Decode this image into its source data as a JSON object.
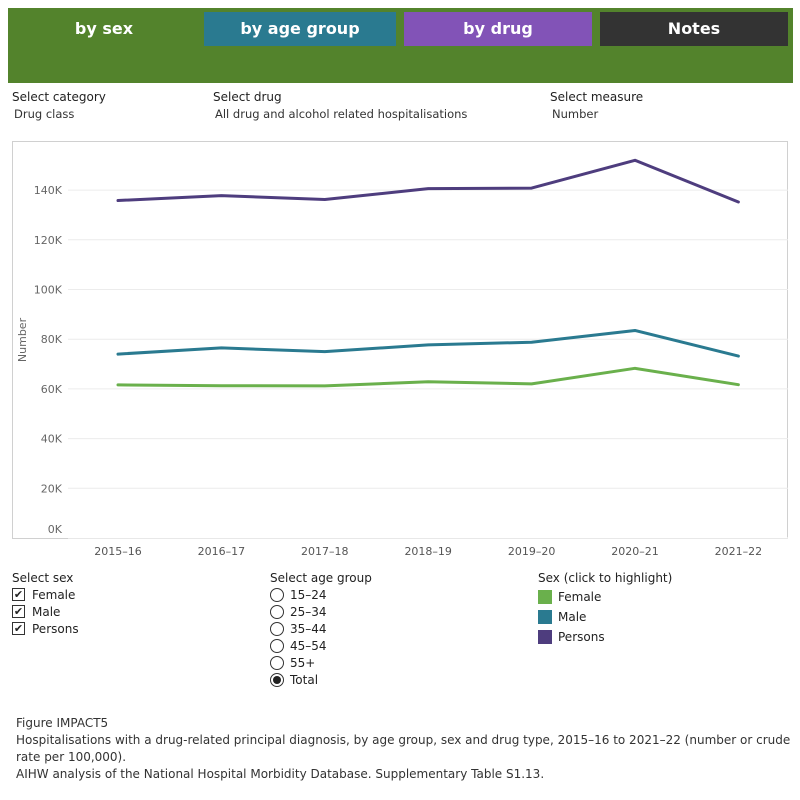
{
  "tabs": [
    {
      "label": "by sex",
      "active": true
    },
    {
      "label": "by age group",
      "active": false
    },
    {
      "label": "by drug",
      "active": false
    },
    {
      "label": "Notes",
      "active": false
    }
  ],
  "filters": {
    "category": {
      "label": "Select category",
      "value": "Drug class"
    },
    "drug": {
      "label": "Select drug",
      "value": "All drug and alcohol related hospitalisations"
    },
    "measure": {
      "label": "Select measure",
      "value": "Number"
    }
  },
  "select_sex": {
    "title": "Select sex",
    "options": [
      {
        "label": "Female",
        "checked": true
      },
      {
        "label": "Male",
        "checked": true
      },
      {
        "label": "Persons",
        "checked": true
      }
    ]
  },
  "select_age": {
    "title": "Select age group",
    "options": [
      {
        "label": "15–24",
        "selected": false
      },
      {
        "label": "25–34",
        "selected": false
      },
      {
        "label": "35–44",
        "selected": false
      },
      {
        "label": "45–54",
        "selected": false
      },
      {
        "label": "55+",
        "selected": false
      },
      {
        "label": "Total",
        "selected": true
      }
    ]
  },
  "sex_legend": {
    "title": "Sex (click to highlight)",
    "items": [
      {
        "label": "Female",
        "color": "#6ab04c"
      },
      {
        "label": "Male",
        "color": "#2a7a90"
      },
      {
        "label": "Persons",
        "color": "#4e3d7e"
      }
    ]
  },
  "caption": {
    "figure": "Figure IMPACT5",
    "description": "Hospitalisations with a drug-related principal diagnosis, by age group, sex and drug type, 2015–16 to 2021–22 (number or crude rate per 100,000).",
    "source": "AIHW analysis of the National Hospital Morbidity Database. Supplementary Table S1.13."
  },
  "chart_data": {
    "type": "line",
    "x": [
      "2015–16",
      "2016–17",
      "2017–18",
      "2018–19",
      "2019–20",
      "2020–21",
      "2021–22"
    ],
    "series": [
      {
        "name": "Persons",
        "color": "#4e3d7e",
        "values": [
          135800,
          137800,
          136200,
          140600,
          140800,
          152000,
          135200
        ]
      },
      {
        "name": "Male",
        "color": "#2a7a90",
        "values": [
          74000,
          76500,
          75000,
          77700,
          78800,
          83500,
          73200
        ]
      },
      {
        "name": "Female",
        "color": "#6ab04c",
        "values": [
          61600,
          61300,
          61200,
          62900,
          62000,
          68300,
          61700
        ]
      }
    ],
    "ylabel": "Number",
    "xlabel": "",
    "ylim": [
      0,
      160000
    ],
    "yticks": [
      "0K",
      "20K",
      "40K",
      "60K",
      "80K",
      "100K",
      "120K",
      "140K"
    ],
    "grid": true
  }
}
